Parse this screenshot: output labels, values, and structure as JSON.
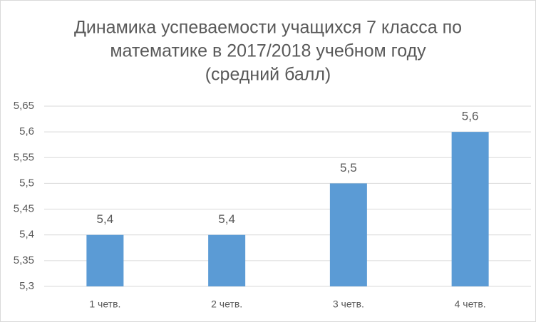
{
  "chart_data": {
    "type": "bar",
    "title": [
      "Динамика успеваемости учащихся 7 класса по",
      "математике в 2017/2018 учебном году",
      "(средний балл)"
    ],
    "categories": [
      "1 четв.",
      "2 четв.",
      "3 четв.",
      "4 четв."
    ],
    "values": [
      5.4,
      5.4,
      5.5,
      5.6
    ],
    "value_labels": [
      "5,4",
      "5,4",
      "5,5",
      "5,6"
    ],
    "color": "#5b9bd5",
    "ylim": [
      5.3,
      5.65
    ],
    "yticks": [
      {
        "value": 5.3,
        "label": "5,3"
      },
      {
        "value": 5.35,
        "label": "5,35"
      },
      {
        "value": 5.4,
        "label": "5,4"
      },
      {
        "value": 5.45,
        "label": "5,45"
      },
      {
        "value": 5.5,
        "label": "5,5"
      },
      {
        "value": 5.55,
        "label": "5,55"
      },
      {
        "value": 5.6,
        "label": "5,6"
      },
      {
        "value": 5.65,
        "label": "5,65"
      }
    ],
    "grid": true
  }
}
